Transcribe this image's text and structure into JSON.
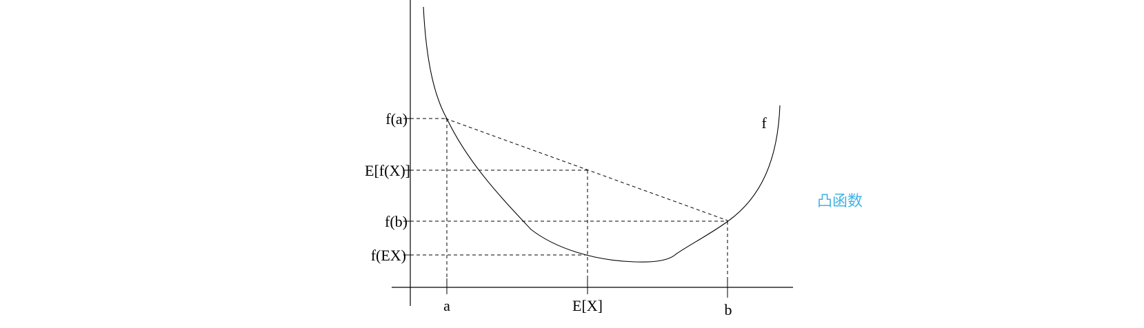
{
  "diagram": {
    "y_labels": {
      "fa": "f(a)",
      "efx": "E[f(X)]",
      "fb": "f(b)",
      "fex": "f(EX)"
    },
    "x_labels": {
      "a": "a",
      "ex": "E[X]",
      "b": "b"
    },
    "curve_label": "f",
    "caption": "凸函数",
    "caption_color": "#3fb3e6"
  }
}
